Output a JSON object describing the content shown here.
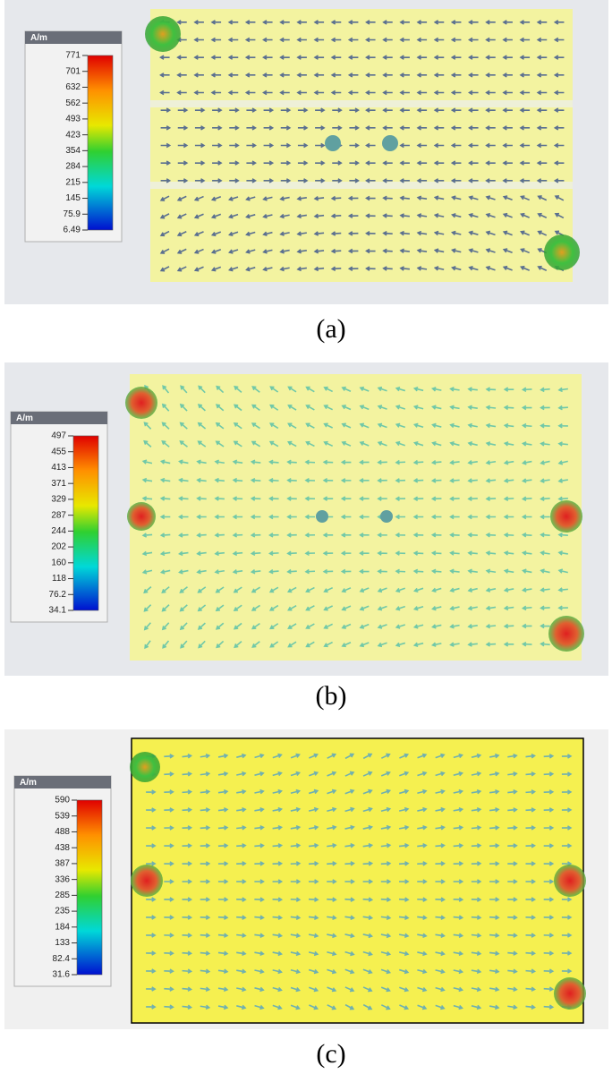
{
  "panels": [
    {
      "unit": "A/m",
      "ticks": [
        "771",
        "701",
        "632",
        "562",
        "493",
        "423",
        "354",
        "284",
        "215",
        "145",
        "75.9",
        "6.49"
      ],
      "caption": "(a)"
    },
    {
      "unit": "A/m",
      "ticks": [
        "497",
        "455",
        "413",
        "371",
        "329",
        "287",
        "244",
        "202",
        "160",
        "118",
        "76.2",
        "34.1"
      ],
      "caption": "(b)"
    },
    {
      "unit": "A/m",
      "ticks": [
        "590",
        "539",
        "488",
        "438",
        "387",
        "336",
        "285",
        "235",
        "184",
        "133",
        "82.4",
        "31.6"
      ],
      "caption": "(c)"
    }
  ]
}
